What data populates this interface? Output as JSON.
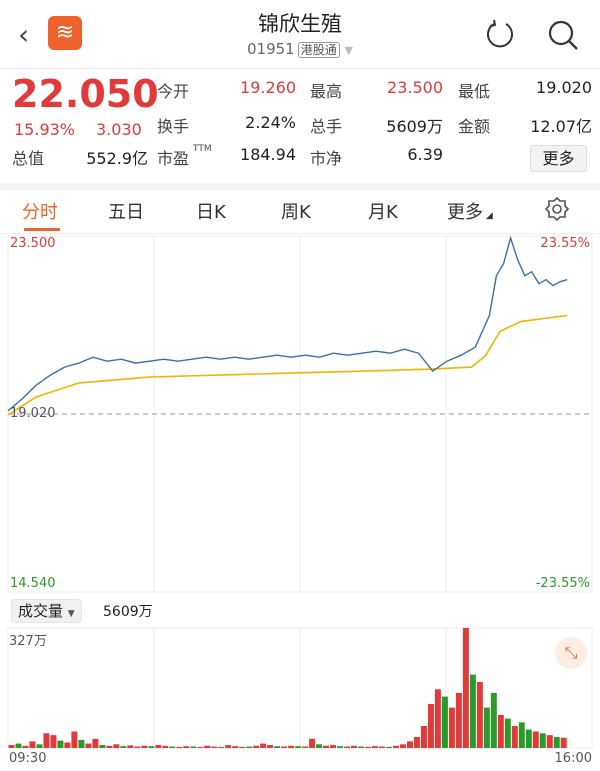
{
  "header": {
    "title": "锦欣生殖",
    "code": "01951",
    "market_tag": "港股通",
    "back_icon": "chevron-left-icon",
    "refresh_icon": "refresh-icon",
    "search_icon": "search-icon"
  },
  "quote": {
    "price": "22.050",
    "change_pct": "15.93%",
    "change": "3.030",
    "fields": [
      {
        "label": "今开",
        "value": "19.260",
        "color": "red"
      },
      {
        "label": "最高",
        "value": "23.500",
        "color": "red"
      },
      {
        "label": "最低",
        "value": "19.020",
        "color": "black"
      },
      {
        "label": "换手",
        "value": "2.24%",
        "color": "black"
      },
      {
        "label": "总手",
        "value": "5609万",
        "color": "black"
      },
      {
        "label": "金额",
        "value": "12.07亿",
        "color": "black"
      },
      {
        "label": "总值",
        "value": "552.9亿",
        "color": "black"
      },
      {
        "label": "市盈",
        "sup": "TTM",
        "value": "184.94",
        "color": "black"
      },
      {
        "label": "市净",
        "value": "6.39",
        "color": "black"
      }
    ],
    "more": "更多"
  },
  "tabs": [
    {
      "label": "分时",
      "active": true
    },
    {
      "label": "五日"
    },
    {
      "label": "日K"
    },
    {
      "label": "周K"
    },
    {
      "label": "月K"
    },
    {
      "label": "更多"
    }
  ],
  "colors": {
    "up": "#e03a3a",
    "down": "#2a9a2a",
    "price_line": "#3a6fa8",
    "avg_line": "#f0b400",
    "accent": "#e8682a"
  },
  "chart_data": {
    "type": "line",
    "y_left_ticks": [
      "23.500",
      "19.020",
      "14.540"
    ],
    "y_right_ticks": [
      "23.55%",
      "-23.55%"
    ],
    "prev_close": 19.02,
    "ylim": [
      14.54,
      23.5
    ],
    "x_labels": [
      "09:30",
      "16:00"
    ],
    "x_minutes_total": 330,
    "price": {
      "minute": [
        0,
        8,
        16,
        24,
        32,
        40,
        48,
        56,
        64,
        72,
        80,
        88,
        96,
        104,
        112,
        120,
        128,
        136,
        144,
        152,
        160,
        168,
        176,
        184,
        192,
        200,
        208,
        216,
        224,
        232,
        240,
        248,
        256,
        264,
        272,
        276,
        280,
        284,
        288,
        292,
        296,
        300,
        304,
        308,
        312,
        316
      ],
      "value": [
        19.1,
        19.4,
        19.75,
        20.0,
        20.2,
        20.3,
        20.45,
        20.35,
        20.4,
        20.3,
        20.35,
        20.4,
        20.35,
        20.4,
        20.45,
        20.4,
        20.45,
        20.4,
        20.45,
        20.5,
        20.45,
        20.5,
        20.45,
        20.55,
        20.5,
        20.55,
        20.6,
        20.55,
        20.65,
        20.55,
        20.1,
        20.35,
        20.5,
        20.7,
        21.5,
        22.5,
        22.8,
        23.45,
        22.9,
        22.5,
        22.6,
        22.3,
        22.4,
        22.25,
        22.35,
        22.4
      ]
    },
    "average": {
      "minute": [
        0,
        16,
        40,
        80,
        160,
        240,
        262,
        270,
        278,
        290,
        316
      ],
      "value": [
        19.0,
        19.45,
        19.8,
        19.95,
        20.05,
        20.15,
        20.2,
        20.5,
        21.1,
        21.35,
        21.5
      ]
    },
    "volume": {
      "label": "成交量",
      "total": "5609万",
      "max_label": "327万",
      "ymax": 327,
      "values": [
        8,
        12,
        6,
        18,
        10,
        40,
        35,
        20,
        15,
        45,
        22,
        12,
        25,
        8,
        6,
        10,
        5,
        7,
        4,
        6,
        5,
        8,
        6,
        4,
        3,
        5,
        4,
        3,
        6,
        4,
        3,
        8,
        5,
        3,
        4,
        6,
        12,
        8,
        5,
        4,
        6,
        5,
        4,
        25,
        10,
        6,
        8,
        5,
        4,
        6,
        4,
        3,
        5,
        4,
        3,
        6,
        10,
        18,
        30,
        60,
        120,
        160,
        140,
        110,
        150,
        327,
        200,
        180,
        110,
        150,
        90,
        80,
        60,
        70,
        50,
        45,
        40,
        35,
        30,
        28
      ],
      "up": [
        "r",
        "g",
        "r",
        "r",
        "g",
        "r",
        "r",
        "g",
        "r",
        "r",
        "g",
        "r",
        "r",
        "g",
        "r",
        "r",
        "g",
        "r",
        "r",
        "r",
        "g",
        "r",
        "r",
        "g",
        "r",
        "r",
        "g",
        "r",
        "r",
        "r",
        "g",
        "r",
        "r",
        "r",
        "g",
        "r",
        "r",
        "r",
        "g",
        "r",
        "r",
        "g",
        "r",
        "r",
        "g",
        "r",
        "r",
        "g",
        "r",
        "r",
        "g",
        "r",
        "r",
        "r",
        "g",
        "r",
        "r",
        "r",
        "r",
        "r",
        "r",
        "r",
        "g",
        "r",
        "r",
        "r",
        "g",
        "r",
        "g",
        "g",
        "r",
        "g",
        "r",
        "g",
        "g",
        "r",
        "g",
        "r",
        "g",
        "r"
      ]
    }
  },
  "volume_bar": {
    "indicator": "成交量",
    "total": "5609万"
  }
}
